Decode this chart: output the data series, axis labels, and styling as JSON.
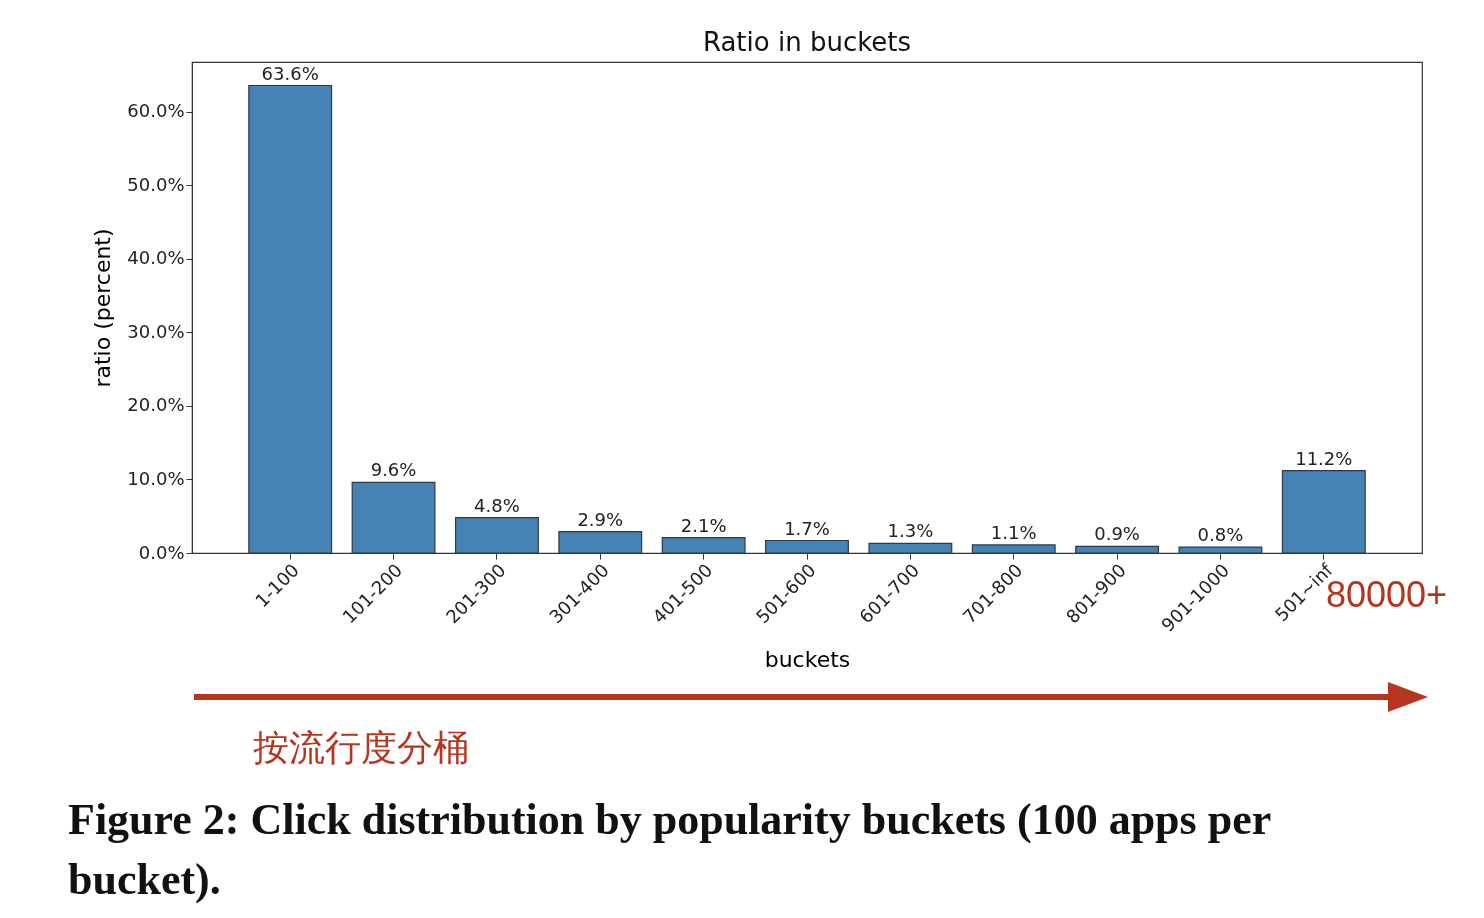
{
  "chart_data": {
    "type": "bar",
    "title": "Ratio in buckets",
    "xlabel": "buckets",
    "ylabel": "ratio (percent)",
    "categories": [
      "1-100",
      "101-200",
      "201-300",
      "301-400",
      "401-500",
      "501-600",
      "601-700",
      "701-800",
      "801-900",
      "901-1000",
      "501~inf"
    ],
    "values": [
      63.6,
      9.6,
      4.8,
      2.9,
      2.1,
      1.7,
      1.3,
      1.1,
      0.9,
      0.8,
      11.2
    ],
    "value_labels": [
      "63.6%",
      "9.6%",
      "4.8%",
      "2.9%",
      "2.1%",
      "1.7%",
      "1.3%",
      "1.1%",
      "0.9%",
      "0.8%",
      "11.2%"
    ],
    "color": "#4682b4",
    "ylim": [
      0,
      66.8
    ],
    "yticks": [
      {
        "value": 0,
        "label": "0.0%"
      },
      {
        "value": 10,
        "label": "10.0%"
      },
      {
        "value": 20,
        "label": "20.0%"
      },
      {
        "value": 30,
        "label": "30.0%"
      },
      {
        "value": 40,
        "label": "40.0%"
      },
      {
        "value": 50,
        "label": "50.0%"
      },
      {
        "value": 60,
        "label": "60.0%"
      }
    ],
    "grid": false,
    "annotations": [
      "80000+",
      "按流行度分桶",
      "Figure 2: Click distribution by popularity buckets (100 apps per bucket)."
    ]
  }
}
